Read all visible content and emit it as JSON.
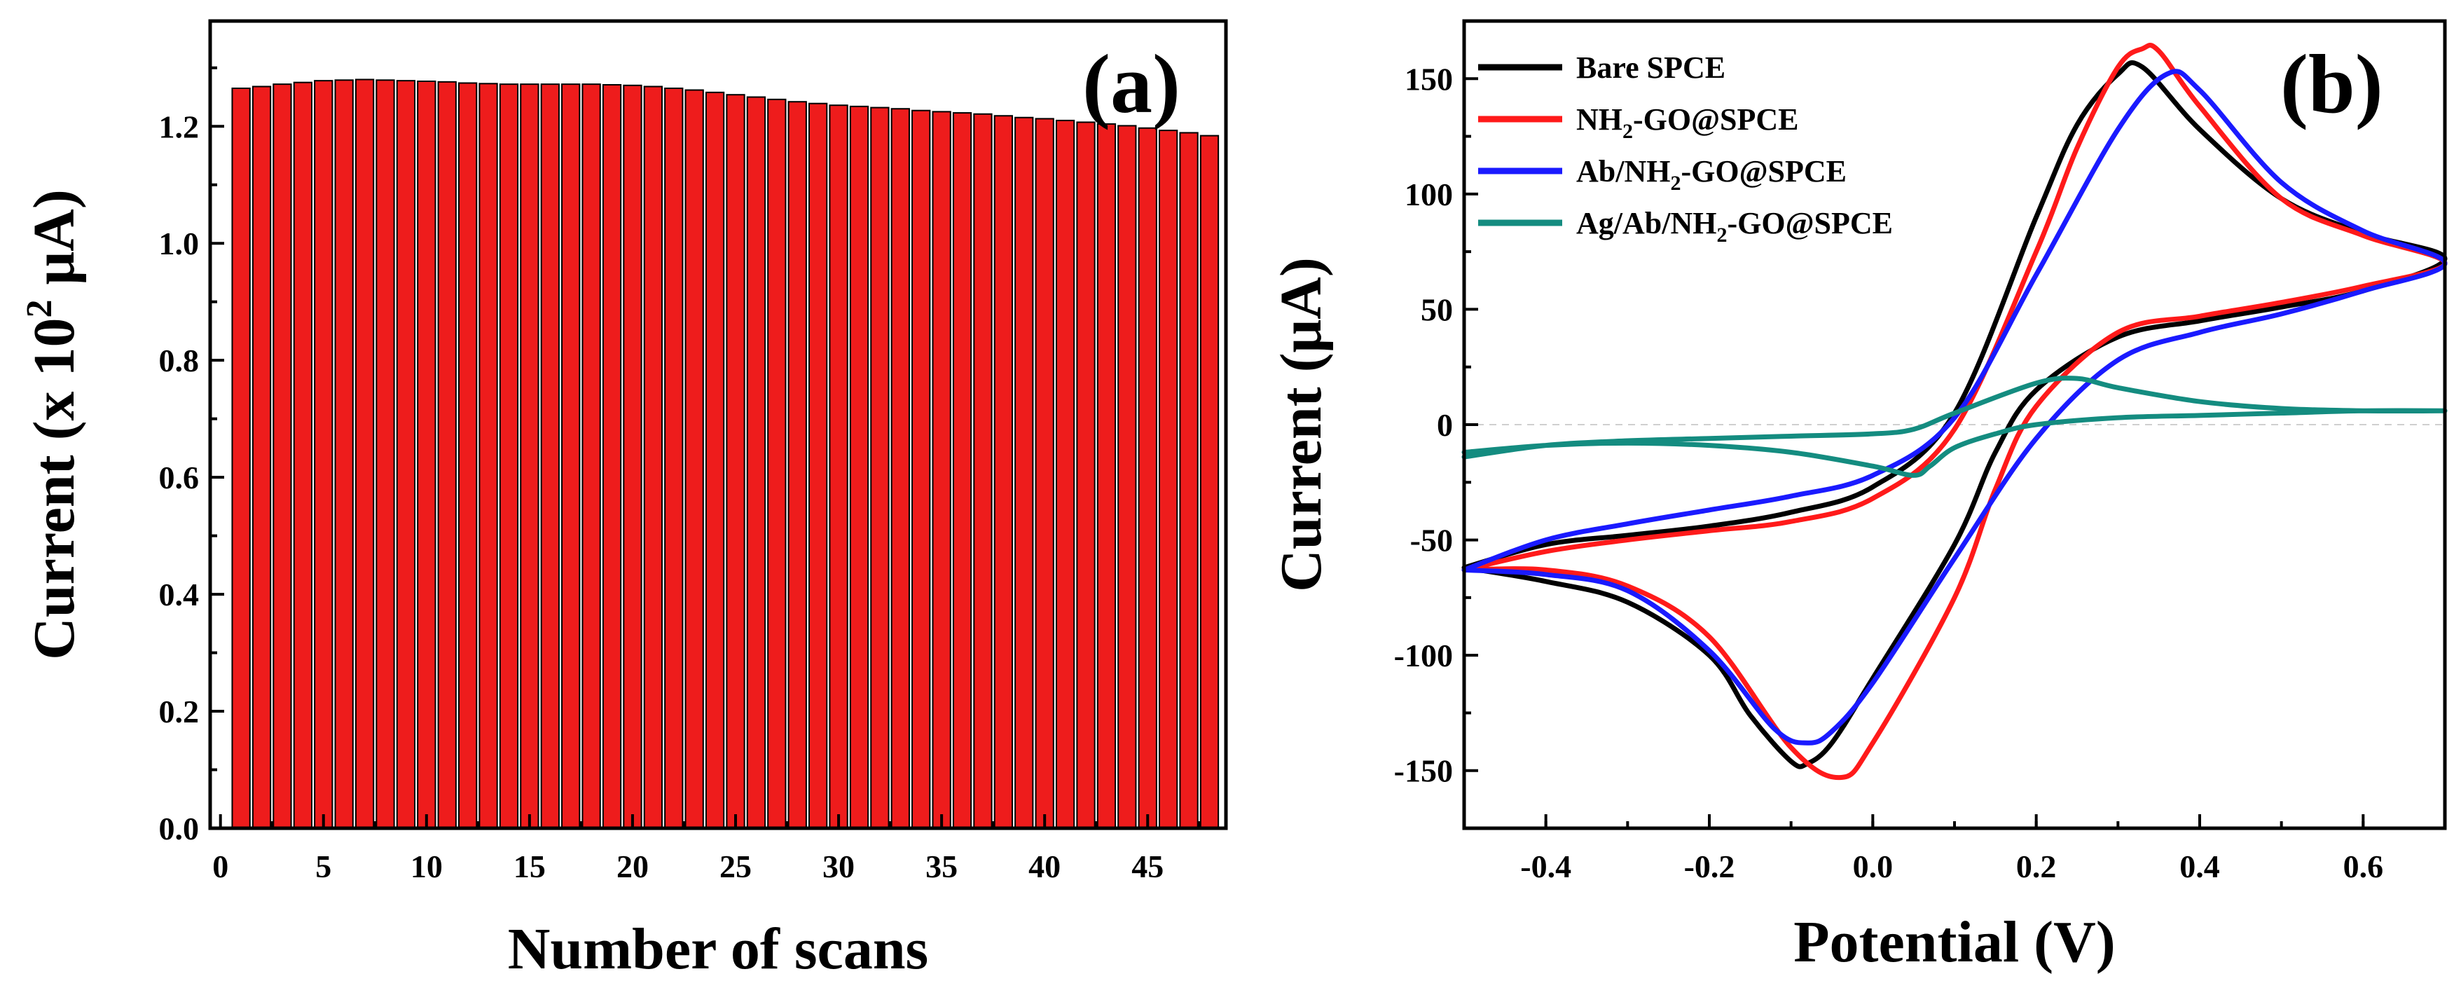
{
  "chart_data": [
    {
      "type": "bar",
      "panel_label": "(a)",
      "xlabel": "Number of scans",
      "ylabel_main": "Current (x 10",
      "ylabel_sup": "2",
      "ylabel_end": " μA)",
      "xlim": [
        -0.5,
        48.8
      ],
      "ylim": [
        0,
        1.38
      ],
      "x_ticks": [
        0,
        5,
        10,
        15,
        20,
        25,
        30,
        35,
        40,
        45
      ],
      "y_ticks": [
        0.0,
        0.2,
        0.4,
        0.6,
        0.8,
        1.0,
        1.2
      ],
      "y_tick_labels": [
        "0.0",
        "0.2",
        "0.4",
        "0.6",
        "0.8",
        "1.0",
        "1.2"
      ],
      "categories": [
        1,
        2,
        3,
        4,
        5,
        6,
        7,
        8,
        9,
        10,
        11,
        12,
        13,
        14,
        15,
        16,
        17,
        18,
        19,
        20,
        21,
        22,
        23,
        24,
        25,
        26,
        27,
        28,
        29,
        30,
        31,
        32,
        33,
        34,
        35,
        36,
        37,
        38,
        39,
        40,
        41,
        42,
        43,
        44,
        45,
        46,
        47,
        48
      ],
      "values": [
        1.265,
        1.268,
        1.272,
        1.275,
        1.278,
        1.279,
        1.28,
        1.279,
        1.278,
        1.277,
        1.276,
        1.274,
        1.273,
        1.272,
        1.272,
        1.272,
        1.272,
        1.272,
        1.271,
        1.27,
        1.268,
        1.265,
        1.262,
        1.258,
        1.254,
        1.25,
        1.246,
        1.242,
        1.239,
        1.236,
        1.234,
        1.232,
        1.23,
        1.227,
        1.225,
        1.223,
        1.221,
        1.218,
        1.215,
        1.213,
        1.21,
        1.207,
        1.204,
        1.201,
        1.197,
        1.193,
        1.189,
        1.184
      ]
    },
    {
      "type": "line",
      "panel_label": "(b)",
      "xlabel": "Potential (V)",
      "ylabel": "Current (μA)",
      "xlim": [
        -0.5,
        0.7
      ],
      "ylim": [
        -175,
        175
      ],
      "x_ticks": [
        -0.4,
        -0.2,
        0.0,
        0.2,
        0.4,
        0.6
      ],
      "x_tick_labels": [
        "-0.4",
        "-0.2",
        "0.0",
        "0.2",
        "0.4",
        "0.6"
      ],
      "y_ticks": [
        -150,
        -100,
        -50,
        0,
        50,
        100,
        150
      ],
      "y_tick_labels": [
        "-150",
        "-100",
        "-50",
        "0",
        "50",
        "100",
        "150"
      ],
      "series": [
        {
          "name": "Bare SPCE",
          "legend_parts": [
            "Bare SPCE"
          ],
          "color": "#000000",
          "x": [
            -0.5,
            -0.4,
            -0.3,
            -0.2,
            -0.1,
            0.0,
            0.1,
            0.2,
            0.25,
            0.3,
            0.33,
            0.4,
            0.5,
            0.6,
            0.7,
            0.6,
            0.5,
            0.4,
            0.3,
            0.2,
            0.15,
            0.1,
            0.0,
            -0.05,
            -0.08,
            -0.1,
            -0.15,
            -0.2,
            -0.3,
            -0.4,
            -0.5
          ],
          "y": [
            -62,
            -52,
            -48,
            -44,
            -38,
            -27,
            5,
            90,
            130,
            152,
            155,
            128,
            98,
            83,
            72,
            58,
            51,
            45,
            38,
            15,
            -12,
            -52,
            -110,
            -138,
            -147,
            -146,
            -126,
            -100,
            -77,
            -68,
            -62
          ]
        },
        {
          "name": "NH2-GO@SPCE",
          "legend_parts": [
            "NH",
            "2",
            "-GO@SPCE"
          ],
          "color": "#ff1a1a",
          "x": [
            -0.5,
            -0.4,
            -0.3,
            -0.2,
            -0.1,
            0.0,
            0.1,
            0.2,
            0.25,
            0.3,
            0.33,
            0.35,
            0.4,
            0.5,
            0.6,
            0.7,
            0.6,
            0.5,
            0.4,
            0.3,
            0.2,
            0.15,
            0.1,
            0.0,
            -0.04,
            -0.1,
            -0.2,
            -0.3,
            -0.4,
            -0.5
          ],
          "y": [
            -63,
            -55,
            -50,
            -46,
            -42,
            -32,
            -2,
            75,
            120,
            155,
            163,
            162,
            138,
            98,
            82,
            70,
            60,
            53,
            47,
            40,
            8,
            -28,
            -75,
            -138,
            -153,
            -140,
            -92,
            -70,
            -63,
            -63
          ]
        },
        {
          "name": "Ab/NH2-GO@SPCE",
          "legend_parts": [
            "Ab/NH",
            "2",
            "-GO@SPCE"
          ],
          "color": "#1a1aff",
          "x": [
            -0.5,
            -0.4,
            -0.3,
            -0.2,
            -0.1,
            0.0,
            0.1,
            0.2,
            0.3,
            0.36,
            0.4,
            0.5,
            0.6,
            0.7,
            0.6,
            0.5,
            0.4,
            0.3,
            0.2,
            0.1,
            0.0,
            -0.05,
            -0.08,
            -0.12,
            -0.2,
            -0.3,
            -0.4,
            -0.5
          ],
          "y": [
            -63,
            -50,
            -43,
            -37,
            -31,
            -22,
            3,
            65,
            128,
            152,
            145,
            105,
            84,
            70,
            58,
            48,
            40,
            28,
            -6,
            -58,
            -112,
            -133,
            -138,
            -132,
            -98,
            -72,
            -65,
            -63
          ]
        },
        {
          "name": "Ag/Ab/NH2-GO@SPCE",
          "legend_parts": [
            "Ag/Ab/NH",
            "2",
            "-GO@SPCE"
          ],
          "color": "#148c80",
          "x": [
            -0.5,
            -0.4,
            -0.3,
            -0.2,
            -0.1,
            0.0,
            0.05,
            0.1,
            0.2,
            0.25,
            0.3,
            0.4,
            0.5,
            0.6,
            0.7,
            0.6,
            0.5,
            0.4,
            0.3,
            0.2,
            0.15,
            0.1,
            0.07,
            0.05,
            0.0,
            -0.1,
            -0.2,
            -0.3,
            -0.4,
            -0.5
          ],
          "y": [
            -14,
            -9,
            -7,
            -6,
            -5,
            -4,
            -2,
            5,
            18,
            20,
            16,
            10,
            7,
            6,
            6,
            6,
            5,
            4,
            3,
            0,
            -4,
            -10,
            -18,
            -22,
            -18,
            -12,
            -9,
            -8,
            -9,
            -12
          ]
        }
      ]
    }
  ]
}
